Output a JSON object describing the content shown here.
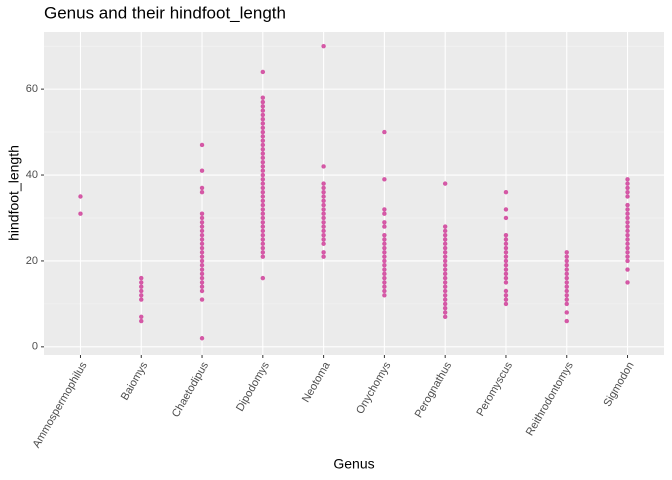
{
  "chart_data": {
    "type": "strip",
    "title": "Genus and their hindfoot_length",
    "x_label": "Genus",
    "y_label": "hindfoot_length",
    "categories": [
      "Ammospermophilus",
      "Baiomys",
      "Chaetodipus",
      "Dipodomys",
      "Neotoma",
      "Onychomys",
      "Perognathus",
      "Peromyscus",
      "Reithrodontomys",
      "Sigmodon"
    ],
    "values": [
      [
        35,
        31
      ],
      [
        16,
        15,
        14,
        13,
        12,
        11,
        7,
        6
      ],
      [
        47,
        41,
        37,
        36,
        31,
        30,
        29,
        28,
        27,
        26,
        25,
        24,
        23,
        22,
        21,
        20,
        19,
        18,
        17,
        16,
        15,
        14,
        13,
        11,
        2
      ],
      [
        64,
        58,
        57,
        56,
        55,
        54,
        53,
        52,
        51,
        50,
        49,
        48,
        47,
        46,
        45,
        44,
        43,
        42,
        41,
        40,
        39,
        38,
        37,
        36,
        35,
        34,
        33,
        32,
        31,
        30,
        29,
        28,
        27,
        26,
        25,
        24,
        23,
        22,
        21,
        16
      ],
      [
        70,
        42,
        38,
        37,
        36,
        35,
        34,
        33,
        32,
        31,
        30,
        29,
        28,
        27,
        26,
        25,
        24,
        22,
        21
      ],
      [
        50,
        39,
        32,
        31,
        29,
        28,
        26,
        25,
        24,
        23,
        22,
        21,
        20,
        19,
        18,
        17,
        16,
        15,
        14,
        13,
        12
      ],
      [
        38,
        28,
        27,
        26,
        25,
        24,
        23,
        22,
        21,
        20,
        19,
        18,
        17,
        16,
        15,
        14,
        13,
        12,
        11,
        10,
        9,
        8,
        7
      ],
      [
        36,
        32,
        30,
        26,
        25,
        24,
        23,
        22,
        21,
        20,
        19,
        18,
        17,
        16,
        15,
        13,
        12,
        11,
        10
      ],
      [
        22,
        21,
        20,
        19,
        18,
        17,
        16,
        15,
        14,
        13,
        12,
        11,
        10,
        8,
        6
      ],
      [
        39,
        38,
        37,
        36,
        35,
        33,
        32,
        31,
        30,
        29,
        28,
        27,
        26,
        25,
        24,
        23,
        22,
        21,
        20,
        18,
        15
      ]
    ],
    "color": "#c71585",
    "ylim": [
      -1.9,
      73.3
    ],
    "yticks": [
      0,
      20,
      40,
      60
    ],
    "minor_yticks": [
      10,
      30,
      50,
      70
    ],
    "grid": true
  }
}
